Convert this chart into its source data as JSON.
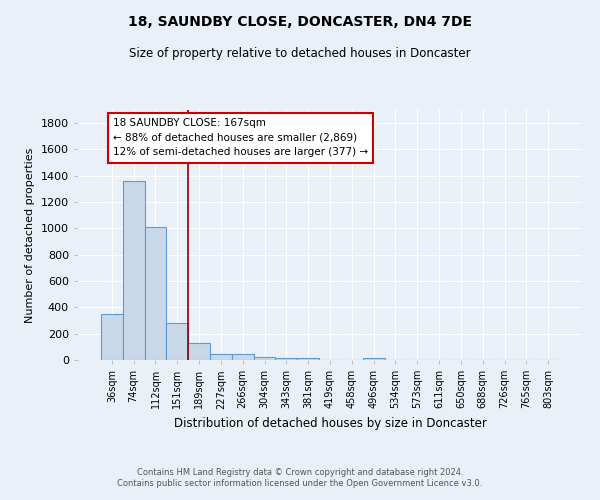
{
  "title": "18, SAUNDBY CLOSE, DONCASTER, DN4 7DE",
  "subtitle": "Size of property relative to detached houses in Doncaster",
  "xlabel": "Distribution of detached houses by size in Doncaster",
  "ylabel": "Number of detached properties",
  "categories": [
    "36sqm",
    "74sqm",
    "112sqm",
    "151sqm",
    "189sqm",
    "227sqm",
    "266sqm",
    "304sqm",
    "343sqm",
    "381sqm",
    "419sqm",
    "458sqm",
    "496sqm",
    "534sqm",
    "573sqm",
    "611sqm",
    "650sqm",
    "688sqm",
    "726sqm",
    "765sqm",
    "803sqm"
  ],
  "values": [
    350,
    1360,
    1010,
    285,
    130,
    42,
    42,
    22,
    15,
    13,
    0,
    0,
    18,
    0,
    0,
    0,
    0,
    0,
    0,
    0,
    0
  ],
  "bar_color": "#c8d8e8",
  "bar_edge_color": "#5b9bd5",
  "property_label": "18 SAUNDBY CLOSE: 167sqm",
  "annotation_line1": "← 88% of detached houses are smaller (2,869)",
  "annotation_line2": "12% of semi-detached houses are larger (377) →",
  "vline_x_index": 3.5,
  "vline_color": "#8b0000",
  "annotation_box_color": "#ffffff",
  "annotation_box_edge": "#cc0000",
  "ylim": [
    0,
    1900
  ],
  "background_color": "#eaf0f8",
  "grid_color": "#ffffff",
  "footer_line1": "Contains HM Land Registry data © Crown copyright and database right 2024.",
  "footer_line2": "Contains public sector information licensed under the Open Government Licence v3.0."
}
